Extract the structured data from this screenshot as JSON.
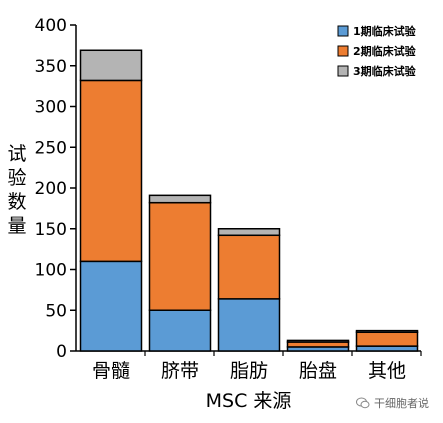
{
  "chart_data": {
    "type": "bar",
    "stacked": true,
    "categories": [
      "骨髓",
      "脐带",
      "脂肪",
      "胎盘",
      "其他"
    ],
    "series": [
      {
        "name": "1期临床试验",
        "values": [
          110,
          50,
          64,
          5,
          6
        ]
      },
      {
        "name": "2期临床试验",
        "values": [
          222,
          132,
          78,
          6,
          17
        ]
      },
      {
        "name": "3期临床试验",
        "values": [
          37,
          9,
          8,
          2,
          2
        ]
      }
    ],
    "colors": [
      "#5b9bd5",
      "#ed7d31",
      "#b4b4b4"
    ],
    "xlabel": "MSC 来源",
    "ylabel": "试验数量",
    "ylabel_chars": [
      "试",
      "验",
      "数",
      "量"
    ],
    "ylim": [
      0,
      400
    ],
    "yticks": [
      0,
      50,
      100,
      150,
      200,
      250,
      300,
      350,
      400
    ],
    "grid": false,
    "legend_position": "top-right"
  },
  "watermark": "干细胞者说",
  "watermark_icon": "wechat-icon"
}
